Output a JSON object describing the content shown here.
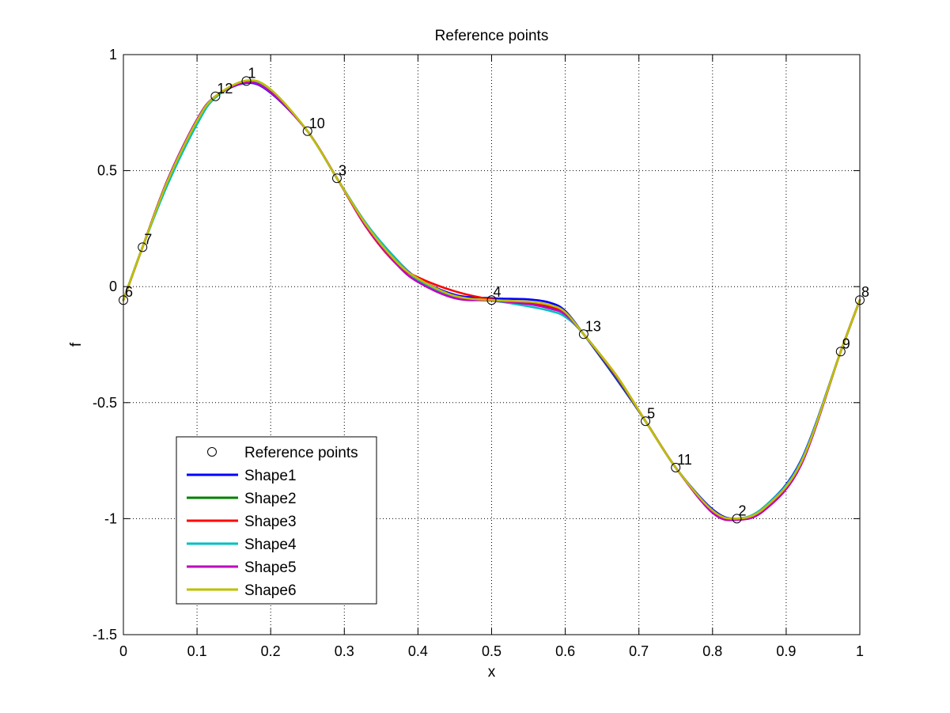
{
  "chart_data": {
    "type": "line",
    "title": "Reference points",
    "xlabel": "x",
    "ylabel": "f",
    "xlim": [
      0,
      1
    ],
    "ylim": [
      -1.5,
      1
    ],
    "xticks": [
      0,
      0.1,
      0.2,
      0.3,
      0.4,
      0.5,
      0.6,
      0.7,
      0.8,
      0.9,
      1
    ],
    "xtick_labels": [
      "0",
      "0.1",
      "0.2",
      "0.3",
      "0.4",
      "0.5",
      "0.6",
      "0.7",
      "0.8",
      "0.9",
      "1"
    ],
    "yticks": [
      -1.5,
      -1,
      -0.5,
      0,
      0.5,
      1
    ],
    "ytick_labels": [
      "-1.5",
      "-1",
      "-0.5",
      "0",
      "0.5",
      "1"
    ],
    "grid": true,
    "legend_position": "bottom-left",
    "reference_points": {
      "name": "Reference points",
      "points": [
        {
          "label": "1",
          "x": 0.167,
          "y": 0.886
        },
        {
          "label": "2",
          "x": 0.833,
          "y": -1.0
        },
        {
          "label": "3",
          "x": 0.29,
          "y": 0.467
        },
        {
          "label": "4",
          "x": 0.5,
          "y": -0.058
        },
        {
          "label": "5",
          "x": 0.709,
          "y": -0.58
        },
        {
          "label": "6",
          "x": 0.0,
          "y": -0.058
        },
        {
          "label": "7",
          "x": 0.026,
          "y": 0.17
        },
        {
          "label": "8",
          "x": 1.0,
          "y": -0.058
        },
        {
          "label": "9",
          "x": 0.974,
          "y": -0.28
        },
        {
          "label": "10",
          "x": 0.25,
          "y": 0.67
        },
        {
          "label": "11",
          "x": 0.75,
          "y": -0.78
        },
        {
          "label": "12",
          "x": 0.125,
          "y": 0.82
        },
        {
          "label": "13",
          "x": 0.625,
          "y": -0.205
        }
      ]
    },
    "series": [
      {
        "name": "Shape1",
        "color": "#0000ff",
        "x": [
          0,
          0.026,
          0.06,
          0.1,
          0.125,
          0.167,
          0.2,
          0.25,
          0.29,
          0.33,
          0.37,
          0.4,
          0.45,
          0.5,
          0.55,
          0.58,
          0.6,
          0.625,
          0.67,
          0.709,
          0.75,
          0.8,
          0.833,
          0.87,
          0.92,
          0.974,
          1
        ],
        "y": [
          -0.058,
          0.17,
          0.46,
          0.72,
          0.82,
          0.878,
          0.835,
          0.67,
          0.467,
          0.27,
          0.12,
          0.035,
          -0.035,
          -0.05,
          -0.055,
          -0.07,
          -0.105,
          -0.205,
          -0.4,
          -0.58,
          -0.78,
          -0.96,
          -1.0,
          -0.95,
          -0.75,
          -0.28,
          -0.058
        ]
      },
      {
        "name": "Shape2",
        "color": "#008000",
        "x": [
          0,
          0.026,
          0.06,
          0.1,
          0.125,
          0.167,
          0.2,
          0.25,
          0.29,
          0.33,
          0.37,
          0.4,
          0.45,
          0.5,
          0.55,
          0.58,
          0.6,
          0.625,
          0.67,
          0.709,
          0.75,
          0.8,
          0.833,
          0.87,
          0.92,
          0.974,
          1
        ],
        "y": [
          -0.058,
          0.17,
          0.45,
          0.71,
          0.82,
          0.882,
          0.845,
          0.67,
          0.467,
          0.265,
          0.115,
          0.03,
          -0.045,
          -0.058,
          -0.07,
          -0.09,
          -0.12,
          -0.205,
          -0.395,
          -0.58,
          -0.78,
          -0.97,
          -1.0,
          -0.955,
          -0.76,
          -0.28,
          -0.058
        ]
      },
      {
        "name": "Shape3",
        "color": "#ff0000",
        "x": [
          0,
          0.026,
          0.06,
          0.1,
          0.125,
          0.167,
          0.2,
          0.25,
          0.29,
          0.33,
          0.37,
          0.4,
          0.45,
          0.5,
          0.55,
          0.58,
          0.6,
          0.625,
          0.67,
          0.709,
          0.75,
          0.8,
          0.833,
          0.87,
          0.92,
          0.974,
          1
        ],
        "y": [
          -0.058,
          0.17,
          0.46,
          0.72,
          0.82,
          0.884,
          0.84,
          0.67,
          0.467,
          0.255,
          0.1,
          0.04,
          -0.02,
          -0.055,
          -0.068,
          -0.085,
          -0.115,
          -0.205,
          -0.385,
          -0.58,
          -0.78,
          -0.97,
          -1.0,
          -0.96,
          -0.765,
          -0.28,
          -0.058
        ]
      },
      {
        "name": "Shape4",
        "color": "#00bfbf",
        "x": [
          0,
          0.026,
          0.06,
          0.1,
          0.125,
          0.167,
          0.2,
          0.25,
          0.29,
          0.33,
          0.37,
          0.4,
          0.45,
          0.5,
          0.55,
          0.58,
          0.6,
          0.625,
          0.67,
          0.709,
          0.75,
          0.8,
          0.833,
          0.87,
          0.92,
          0.974,
          1
        ],
        "y": [
          -0.058,
          0.17,
          0.44,
          0.7,
          0.815,
          0.885,
          0.848,
          0.67,
          0.467,
          0.27,
          0.12,
          0.03,
          -0.048,
          -0.06,
          -0.085,
          -0.105,
          -0.13,
          -0.205,
          -0.39,
          -0.58,
          -0.78,
          -0.965,
          -1.0,
          -0.95,
          -0.755,
          -0.28,
          -0.058
        ]
      },
      {
        "name": "Shape5",
        "color": "#bf00bf",
        "x": [
          0,
          0.026,
          0.06,
          0.1,
          0.125,
          0.167,
          0.2,
          0.25,
          0.29,
          0.33,
          0.37,
          0.4,
          0.45,
          0.5,
          0.55,
          0.58,
          0.6,
          0.625,
          0.67,
          0.709,
          0.75,
          0.8,
          0.833,
          0.87,
          0.92,
          0.974,
          1
        ],
        "y": [
          -0.058,
          0.17,
          0.46,
          0.72,
          0.82,
          0.88,
          0.838,
          0.67,
          0.467,
          0.258,
          0.1,
          0.02,
          -0.05,
          -0.06,
          -0.075,
          -0.095,
          -0.12,
          -0.205,
          -0.39,
          -0.58,
          -0.78,
          -0.975,
          -1.005,
          -0.965,
          -0.77,
          -0.28,
          -0.058
        ]
      },
      {
        "name": "Shape6",
        "color": "#bfbf00",
        "x": [
          0,
          0.026,
          0.06,
          0.1,
          0.125,
          0.167,
          0.2,
          0.25,
          0.29,
          0.33,
          0.37,
          0.4,
          0.45,
          0.5,
          0.55,
          0.58,
          0.6,
          0.625,
          0.67,
          0.709,
          0.75,
          0.8,
          0.833,
          0.87,
          0.92,
          0.974,
          1
        ],
        "y": [
          -0.058,
          0.17,
          0.455,
          0.715,
          0.82,
          0.888,
          0.85,
          0.67,
          0.467,
          0.265,
          0.11,
          0.035,
          -0.04,
          -0.058,
          -0.065,
          -0.08,
          -0.11,
          -0.205,
          -0.385,
          -0.58,
          -0.78,
          -0.965,
          -1.0,
          -0.955,
          -0.76,
          -0.28,
          -0.058
        ]
      }
    ]
  }
}
